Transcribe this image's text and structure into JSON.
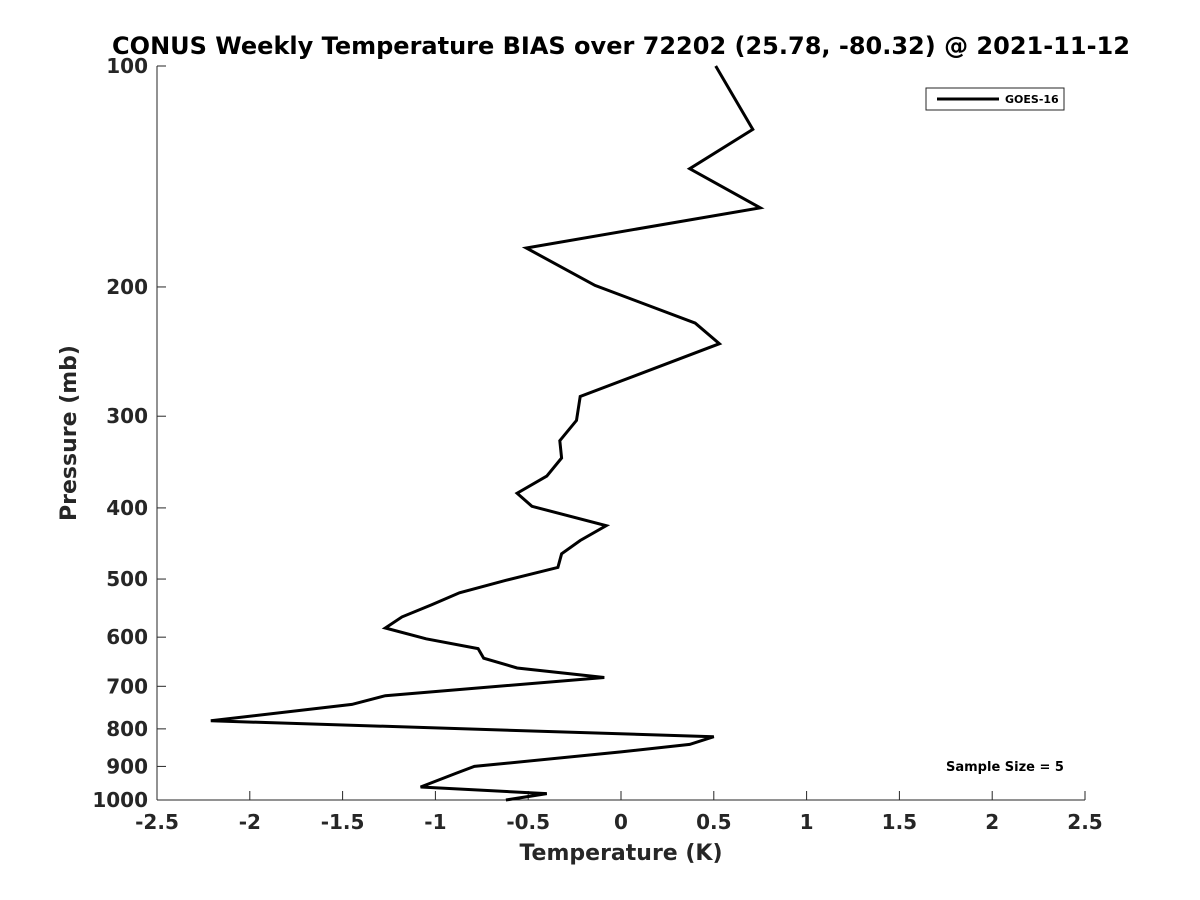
{
  "chart_data": {
    "type": "line",
    "title": "CONUS Weekly Temperature BIAS over 72202 (25.78, -80.32) @ 2021-11-12",
    "xlabel": "Temperature (K)",
    "ylabel": "Pressure (mb)",
    "xlim": [
      -2.5,
      2.5
    ],
    "ylim": [
      100,
      1000
    ],
    "y_scale": "log",
    "y_reversed": true,
    "x_ticks": [
      -2.5,
      -2,
      -1.5,
      -1,
      -0.5,
      0,
      0.5,
      1,
      1.5,
      2,
      2.5
    ],
    "x_tick_labels": [
      "-2.5",
      "-2",
      "-1.5",
      "-1",
      "-0.5",
      "0",
      "0.5",
      "1",
      "1.5",
      "2",
      "2.5"
    ],
    "y_ticks": [
      100,
      200,
      300,
      400,
      500,
      600,
      700,
      800,
      900,
      1000
    ],
    "y_tick_labels": [
      "100",
      "200",
      "300",
      "400",
      "500",
      "600",
      "700",
      "800",
      "900",
      "1000"
    ],
    "grid": false,
    "legend_position": "top-right",
    "annotation": "Sample Size = 5",
    "series": [
      {
        "name": "GOES-16",
        "color": "#000000",
        "points": [
          {
            "x": 0.51,
            "y": 100
          },
          {
            "x": 0.71,
            "y": 122
          },
          {
            "x": 0.37,
            "y": 138
          },
          {
            "x": 0.75,
            "y": 156
          },
          {
            "x": -0.51,
            "y": 177
          },
          {
            "x": -0.14,
            "y": 199
          },
          {
            "x": 0.4,
            "y": 224
          },
          {
            "x": 0.53,
            "y": 239
          },
          {
            "x": -0.22,
            "y": 282
          },
          {
            "x": -0.24,
            "y": 304
          },
          {
            "x": -0.33,
            "y": 324
          },
          {
            "x": -0.32,
            "y": 342
          },
          {
            "x": -0.4,
            "y": 362
          },
          {
            "x": -0.56,
            "y": 382
          },
          {
            "x": -0.48,
            "y": 398
          },
          {
            "x": -0.08,
            "y": 423
          },
          {
            "x": -0.22,
            "y": 443
          },
          {
            "x": -0.32,
            "y": 462
          },
          {
            "x": -0.34,
            "y": 482
          },
          {
            "x": -0.62,
            "y": 502
          },
          {
            "x": -0.87,
            "y": 522
          },
          {
            "x": -1.02,
            "y": 542
          },
          {
            "x": -1.18,
            "y": 563
          },
          {
            "x": -1.27,
            "y": 583
          },
          {
            "x": -1.05,
            "y": 603
          },
          {
            "x": -0.77,
            "y": 622
          },
          {
            "x": -0.74,
            "y": 641
          },
          {
            "x": -0.56,
            "y": 661
          },
          {
            "x": -0.09,
            "y": 681
          },
          {
            "x": -1.27,
            "y": 721
          },
          {
            "x": -1.45,
            "y": 741
          },
          {
            "x": -2.21,
            "y": 780
          },
          {
            "x": 0.5,
            "y": 820
          },
          {
            "x": 0.37,
            "y": 840
          },
          {
            "x": 0.0,
            "y": 860
          },
          {
            "x": -0.79,
            "y": 900
          },
          {
            "x": -0.89,
            "y": 920
          },
          {
            "x": -1.08,
            "y": 960
          },
          {
            "x": -0.4,
            "y": 980
          },
          {
            "x": -0.62,
            "y": 1000
          }
        ]
      }
    ]
  }
}
